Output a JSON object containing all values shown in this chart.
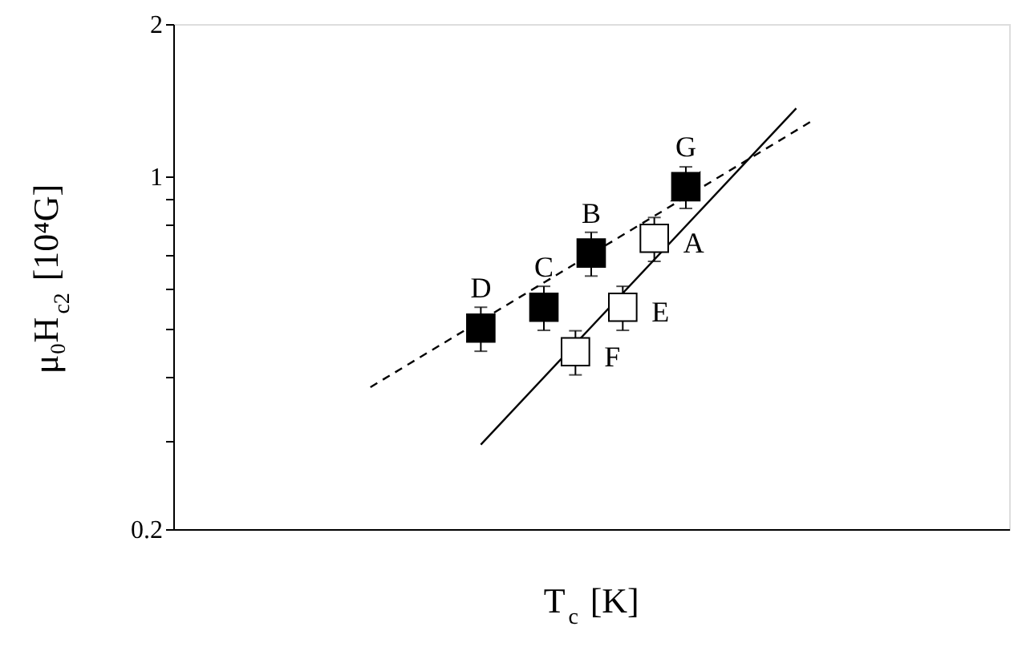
{
  "chart_data": {
    "type": "scatter",
    "xlabel": "T$_{c}$ [K]",
    "ylabel": "μ₀H$_{c2}$ [10⁴G]",
    "log": "y",
    "grid": false,
    "marker": "square",
    "categories": [
      null,
      null,
      null,
      null,
      null,
      null,
      null,
      null,
      null,
      null,
      null,
      null,
      null,
      null,
      null,
      null,
      null,
      null,
      null,
      null,
      null,
      null,
      null,
      null,
      null,
      null,
      null,
      null,
      null,
      null,
      null,
      null,
      null,
      null,
      null,
      null,
      null,
      null,
      null,
      null,
      null,
      null,
      null,
      null,
      null,
      null,
      null,
      null,
      null,
      null,
      null,
      null,
      null
    ],
    "ylim": [
      0.2,
      2
    ],
    "yticks": [
      0.2,
      {
        "value": 0.3,
        "label": null
      },
      {
        "value": 0.4,
        "label": null
      },
      {
        "value": 0.5,
        "label": null
      },
      {
        "value": 0.6,
        "label": null
      },
      {
        "value": 0.7,
        "label": null
      },
      {
        "value": 0.8,
        "label": null
      },
      {
        "value": 0.9,
        "label": null
      },
      1,
      2
    ],
    "series": [
      {
        "type": "line",
        "line_style": "dashed",
        "marker": "none",
        "color": "#000000",
        "values": [
          null,
          null,
          null,
          null,
          null,
          null,
          null,
          null,
          null,
          null,
          null,
          null,
          0.382,
          null,
          null,
          null,
          null,
          null,
          null,
          null,
          null,
          null,
          null,
          null,
          null,
          null,
          null,
          null,
          null,
          null,
          null,
          null,
          null,
          null,
          null,
          null,
          null,
          null,
          null,
          null,
          1.286,
          null,
          null,
          null,
          null,
          null,
          null,
          null,
          null,
          null,
          null,
          null,
          null
        ]
      },
      {
        "type": "line",
        "line_style": "solid",
        "marker": "none",
        "color": "#000000",
        "values": [
          null,
          null,
          null,
          null,
          null,
          null,
          null,
          null,
          null,
          null,
          null,
          null,
          null,
          null,
          null,
          null,
          null,
          null,
          null,
          0.294,
          null,
          null,
          null,
          null,
          null,
          null,
          null,
          null,
          null,
          null,
          null,
          null,
          null,
          null,
          null,
          null,
          null,
          null,
          null,
          1.362,
          null,
          null,
          null,
          null,
          null,
          null,
          null,
          null,
          null,
          null,
          null,
          null,
          null
        ]
      },
      {
        "color": "#000000",
        "values": [
          null,
          null,
          null,
          null,
          null,
          null,
          null,
          null,
          null,
          null,
          null,
          null,
          null,
          null,
          null,
          null,
          null,
          null,
          null,
          0.5,
          null,
          null,
          null,
          0.55,
          null,
          null,
          0.704,
          null,
          null,
          null,
          null,
          null,
          null,
          null,
          null,
          null,
          null,
          null,
          null,
          null,
          null,
          null,
          null,
          null,
          null,
          null,
          null,
          null,
          null,
          null,
          null,
          null,
          null
        ],
        "errors": [
          null,
          null,
          null,
          null,
          null,
          null,
          null,
          null,
          null,
          null,
          null,
          null,
          null,
          null,
          null,
          null,
          null,
          null,
          null,
          0.05,
          null,
          null,
          null,
          0.055,
          null,
          null,
          0.07,
          null,
          null,
          null,
          null,
          null,
          null,
          null,
          null,
          null,
          null,
          null,
          null,
          null,
          null,
          null,
          null,
          null,
          null,
          null,
          null,
          null,
          null,
          null,
          null,
          null,
          null
        ],
        "value_labels": [
          null,
          null,
          null,
          null,
          null,
          null,
          null,
          null,
          null,
          null,
          null,
          null,
          null,
          null,
          null,
          null,
          null,
          null,
          null,
          "D",
          null,
          null,
          null,
          "C",
          null,
          null,
          "B",
          null,
          null,
          null,
          null,
          null,
          null,
          null,
          null,
          null,
          null,
          null,
          null,
          null,
          null,
          null,
          null,
          null,
          null,
          null,
          null,
          null,
          null,
          null,
          null,
          null,
          null
        ]
      },
      {
        "color": "#ffffff",
        "values": [
          null,
          null,
          null,
          null,
          null,
          null,
          null,
          null,
          null,
          null,
          null,
          null,
          null,
          null,
          null,
          null,
          null,
          null,
          null,
          null,
          null,
          null,
          null,
          null,
          null,
          0.449,
          null,
          null,
          0.55,
          null,
          0.753,
          null,
          null,
          null,
          null,
          null,
          null,
          null,
          null,
          null,
          null,
          null,
          null,
          null,
          null,
          null,
          null,
          null,
          null,
          null,
          null,
          null,
          null
        ],
        "errors": [
          null,
          null,
          null,
          null,
          null,
          null,
          null,
          null,
          null,
          null,
          null,
          null,
          null,
          null,
          null,
          null,
          null,
          null,
          null,
          null,
          null,
          null,
          null,
          null,
          null,
          0.045,
          null,
          null,
          0.055,
          null,
          0.075,
          null,
          null,
          null,
          null,
          null,
          null,
          null,
          null,
          null,
          null,
          null,
          null,
          null,
          null,
          null,
          null,
          null,
          null,
          null,
          null,
          null,
          null
        ],
        "value_labels": [
          null,
          null,
          null,
          null,
          null,
          null,
          null,
          null,
          null,
          null,
          null,
          null,
          null,
          null,
          null,
          null,
          null,
          null,
          null,
          null,
          null,
          null,
          null,
          null,
          null,
          "F",
          null,
          null,
          "E",
          null,
          "A",
          null,
          null,
          null,
          null,
          null,
          null,
          null,
          null,
          null,
          null,
          null,
          null,
          null,
          null,
          null,
          null,
          null,
          null,
          null,
          null,
          null,
          null
        ]
      },
      {
        "colors": [
          null,
          null,
          null,
          null,
          null,
          null,
          null,
          null,
          null,
          null,
          null,
          null,
          null,
          null,
          null,
          null,
          null,
          null,
          null,
          null,
          null,
          null,
          null,
          null,
          null,
          null,
          null,
          null,
          null,
          null,
          null,
          null,
          "#000000",
          null,
          null,
          null,
          null,
          null,
          null,
          null,
          null,
          null,
          null,
          null,
          null,
          null,
          null,
          null,
          null,
          null,
          null,
          null,
          null
        ],
        "values": [
          null,
          null,
          null,
          null,
          null,
          null,
          null,
          null,
          null,
          null,
          null,
          null,
          null,
          null,
          null,
          null,
          null,
          null,
          null,
          null,
          null,
          null,
          null,
          null,
          null,
          null,
          null,
          null,
          null,
          null,
          null,
          null,
          0.953,
          null,
          null,
          null,
          null,
          null,
          null,
          null,
          null,
          null,
          null,
          null,
          null,
          null,
          null,
          null,
          null,
          null,
          null,
          null,
          null
        ],
        "errors": [
          null,
          null,
          null,
          null,
          null,
          null,
          null,
          null,
          null,
          null,
          null,
          null,
          null,
          null,
          null,
          null,
          null,
          null,
          null,
          null,
          null,
          null,
          null,
          null,
          null,
          null,
          null,
          null,
          null,
          null,
          null,
          null,
          0.09,
          null,
          null,
          null,
          null,
          null,
          null,
          null,
          null,
          null,
          null,
          null,
          null,
          null,
          null,
          null,
          null,
          null,
          null,
          null,
          null
        ],
        "value_labels": [
          null,
          null,
          null,
          null,
          null,
          null,
          null,
          null,
          null,
          null,
          null,
          null,
          null,
          null,
          null,
          null,
          null,
          null,
          null,
          null,
          null,
          null,
          null,
          null,
          null,
          null,
          null,
          null,
          null,
          null,
          null,
          null,
          "G",
          null,
          null,
          null,
          null,
          null,
          null,
          null,
          null,
          null,
          null,
          null,
          null,
          null,
          null,
          null,
          null,
          null,
          null,
          null,
          null
        ]
      }
    ]
  }
}
